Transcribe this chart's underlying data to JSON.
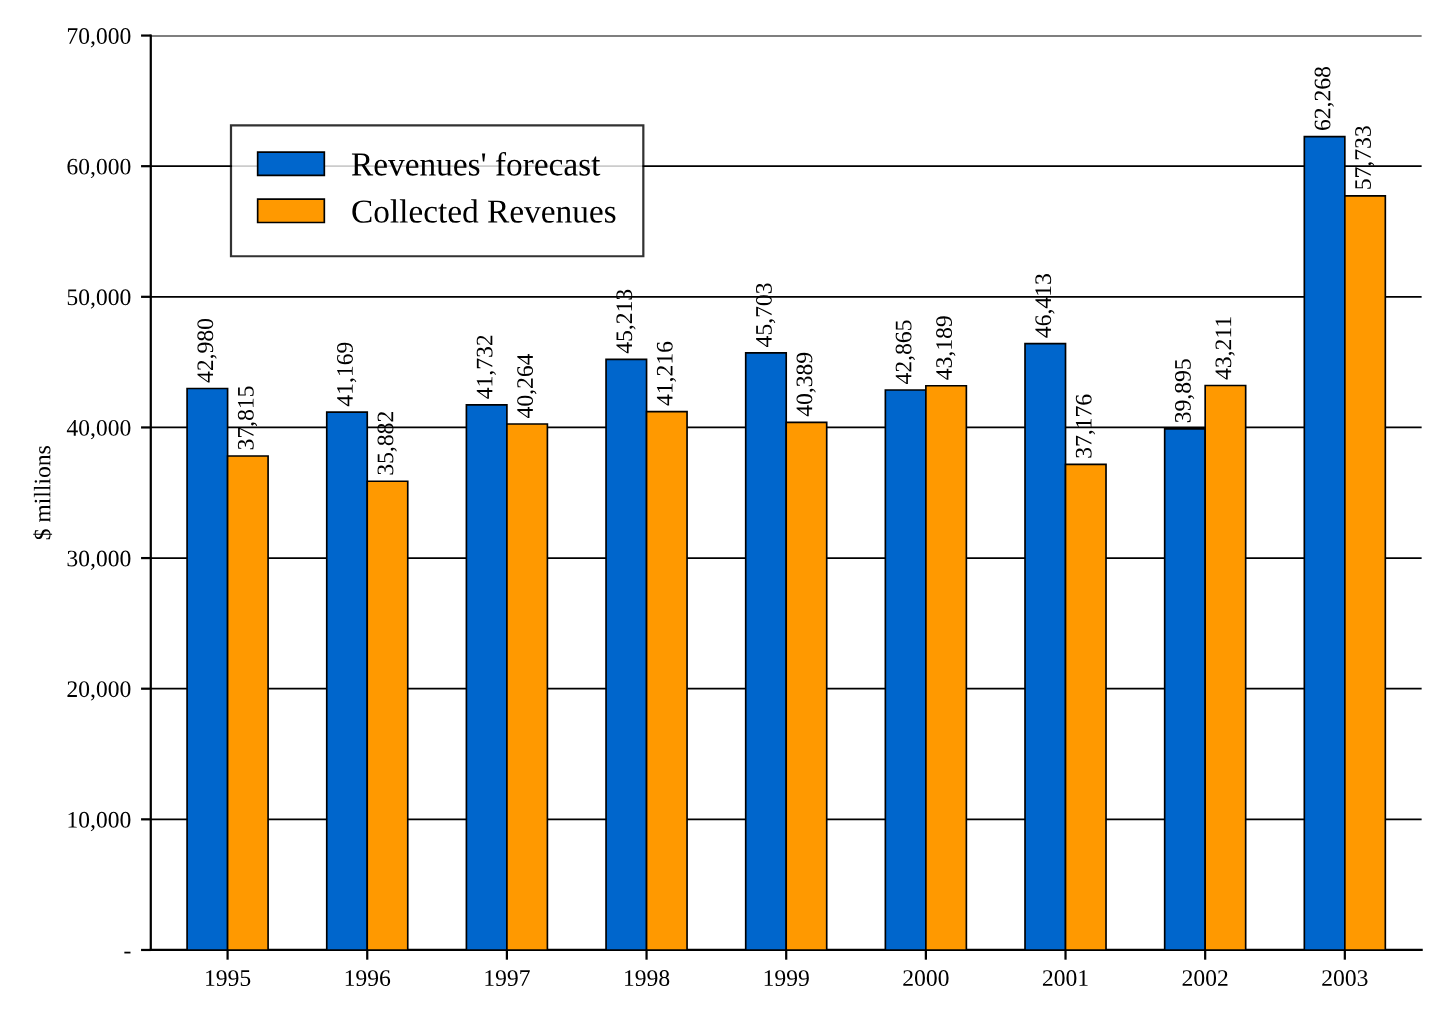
{
  "chart_data": {
    "type": "bar",
    "ylabel": "$ millions",
    "categories": [
      "1995",
      "1996",
      "1997",
      "1998",
      "1999",
      "2000",
      "2001",
      "2002",
      "2003"
    ],
    "series": [
      {
        "name": "Revenues' forecast",
        "color": "#0066cc",
        "values": [
          42980,
          41169,
          41732,
          45213,
          45703,
          42865,
          46413,
          39895,
          62268
        ],
        "value_labels": [
          "42,980",
          "41,169",
          "41,732",
          "45,213",
          "45,703",
          "42,865",
          "46,413",
          "39,895",
          "62,268"
        ]
      },
      {
        "name": "Collected Revenues",
        "color": "#ff9900",
        "values": [
          37815,
          35882,
          40264,
          41216,
          40389,
          43189,
          37176,
          43211,
          57733
        ],
        "value_labels": [
          "37,815",
          "35,882",
          "40,264",
          "41,216",
          "40,389",
          "43,189",
          "37,176",
          "43,211",
          "57,733"
        ]
      }
    ],
    "ylim": [
      0,
      70000
    ],
    "yticks": [
      {
        "value": 0,
        "label": "-"
      },
      {
        "value": 10000,
        "label": "10,000"
      },
      {
        "value": 20000,
        "label": "20,000"
      },
      {
        "value": 30000,
        "label": "30,000"
      },
      {
        "value": 40000,
        "label": "40,000"
      },
      {
        "value": 50000,
        "label": "50,000"
      },
      {
        "value": 60000,
        "label": "60,000"
      },
      {
        "value": 70000,
        "label": "70,000"
      }
    ],
    "grid": "y",
    "legend": "top left"
  }
}
